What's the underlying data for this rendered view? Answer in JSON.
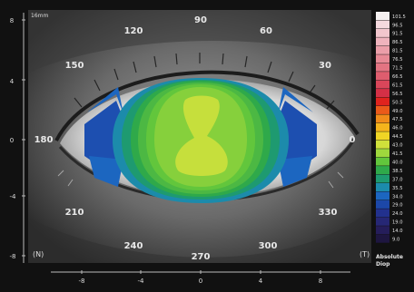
{
  "map": {
    "scale_label": "16mm",
    "eye_labels": {
      "left": "(N)",
      "right": "(T)"
    },
    "angle_labels": [
      "0",
      "30",
      "60",
      "90",
      "120",
      "150",
      "180",
      "210",
      "240",
      "270",
      "300",
      "330"
    ],
    "y_ticks": [
      "8",
      "4",
      "0",
      "-4",
      "-8"
    ],
    "x_ticks": [
      "-8",
      "-4",
      "0",
      "4",
      "8"
    ]
  },
  "colors": {
    "frame": "#111111",
    "photo_bg": "#474747",
    "plot_fill": "#0d0d0d"
  },
  "legend": {
    "title_line1": "Absolute",
    "title_line2": "Diop",
    "entries": [
      {
        "value": "101.5",
        "color": "#f5f0f0"
      },
      {
        "value": "96.5",
        "color": "#f4d9de"
      },
      {
        "value": "91.5",
        "color": "#f2c6cd"
      },
      {
        "value": "86.5",
        "color": "#efb3bd"
      },
      {
        "value": "81.5",
        "color": "#eb9ea9"
      },
      {
        "value": "76.5",
        "color": "#e78995"
      },
      {
        "value": "71.5",
        "color": "#e37482"
      },
      {
        "value": "66.5",
        "color": "#de5d6e"
      },
      {
        "value": "61.5",
        "color": "#d9465a"
      },
      {
        "value": "56.5",
        "color": "#d43046"
      },
      {
        "value": "50.5",
        "color": "#e0231e"
      },
      {
        "value": "49.0",
        "color": "#ea5a1a"
      },
      {
        "value": "47.5",
        "color": "#f08c1a"
      },
      {
        "value": "46.0",
        "color": "#f4b41c"
      },
      {
        "value": "44.5",
        "color": "#f0d525"
      },
      {
        "value": "43.0",
        "color": "#cfe03b"
      },
      {
        "value": "41.5",
        "color": "#9fd83d"
      },
      {
        "value": "40.0",
        "color": "#62c63c"
      },
      {
        "value": "38.5",
        "color": "#2fa94a"
      },
      {
        "value": "37.0",
        "color": "#1e9a70"
      },
      {
        "value": "35.5",
        "color": "#1c8bab"
      },
      {
        "value": "34.0",
        "color": "#1c66c0"
      },
      {
        "value": "29.0",
        "color": "#1c47a8"
      },
      {
        "value": "24.0",
        "color": "#22318e"
      },
      {
        "value": "19.0",
        "color": "#262775"
      },
      {
        "value": "14.0",
        "color": "#251d5a"
      },
      {
        "value": "9.0",
        "color": "#1e1640"
      }
    ]
  }
}
